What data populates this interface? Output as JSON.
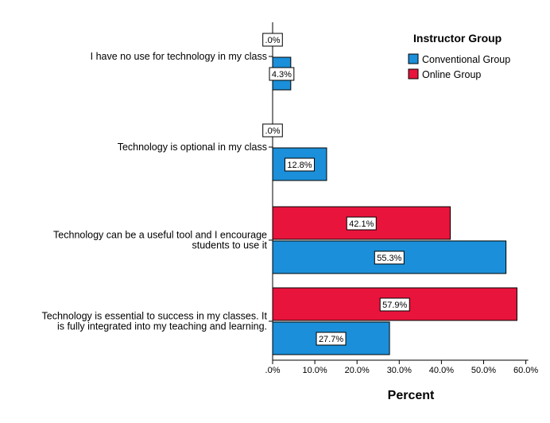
{
  "chart_data": {
    "type": "bar",
    "orientation": "horizontal",
    "categories": [
      [
        "I have no use for technology in my class"
      ],
      [
        "Technology is optional in my class"
      ],
      [
        "Technology can be a useful tool and I encourage",
        "students to use it"
      ],
      [
        "Technology is essential to success in my classes. It",
        "is fully integrated into my teaching and learning."
      ]
    ],
    "series": [
      {
        "name": "Online Group",
        "color": "#e8143c",
        "values": [
          0.0,
          0.0,
          42.1,
          57.9
        ],
        "labels": [
          ".0%",
          ".0%",
          "42.1%",
          "57.9%"
        ]
      },
      {
        "name": "Conventional Group",
        "color": "#1b8fd9",
        "values": [
          4.3,
          12.8,
          55.3,
          27.7
        ],
        "labels": [
          "4.3%",
          "12.8%",
          "55.3%",
          "27.7%"
        ]
      }
    ],
    "xlim": [
      0,
      60
    ],
    "xticks": [
      ".0%",
      "10.0%",
      "20.0%",
      "30.0%",
      "40.0%",
      "50.0%",
      "60.0%"
    ],
    "xlabel": "Percent",
    "ylabel": "",
    "legend": {
      "title": "Instructor Group",
      "position": "top-right",
      "items": [
        "Conventional Group",
        "Online Group"
      ]
    },
    "grid": false
  }
}
